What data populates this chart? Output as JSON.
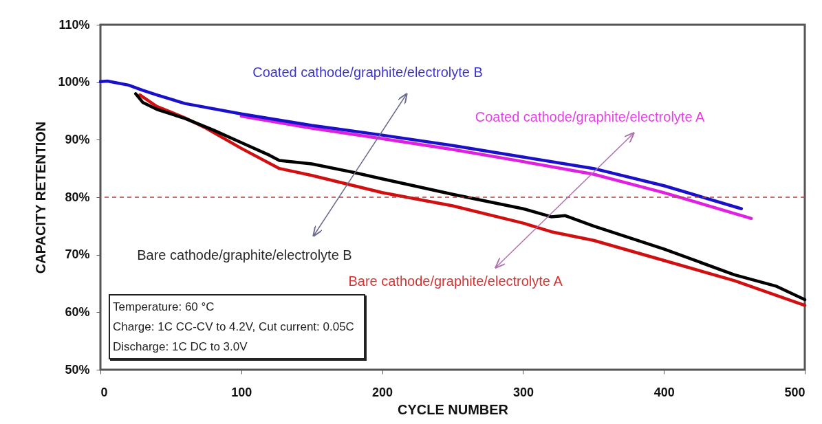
{
  "chart_data": {
    "type": "line",
    "xlabel": "CYCLE NUMBER",
    "ylabel": "CAPACITY  RETENTION",
    "xlim": [
      0,
      500
    ],
    "xticks": [
      0,
      100,
      200,
      300,
      400,
      500
    ],
    "ylim": [
      50,
      110
    ],
    "yticks": [
      {
        "value": 50,
        "label": "50%"
      },
      {
        "value": 60,
        "label": "60%"
      },
      {
        "value": 70,
        "label": "70%"
      },
      {
        "value": 80,
        "label": "80%"
      },
      {
        "value": 90,
        "label": "90%"
      },
      {
        "value": 100,
        "label": "100%"
      },
      {
        "value": 110,
        "label": "110%"
      }
    ],
    "grid": false,
    "legend": false,
    "line_style": "solid",
    "marker": "none",
    "series": [
      {
        "name": "Coated cathode/graphite/electrolyte B",
        "color": "#1a10c8",
        "x": [
          0,
          5,
          20,
          30,
          40,
          60,
          100,
          150,
          200,
          250,
          300,
          350,
          400,
          455
        ],
        "values": [
          100.1,
          100.2,
          99.5,
          98.6,
          97.8,
          96.3,
          94.5,
          92.5,
          90.8,
          89,
          87,
          85,
          82,
          78
        ]
      },
      {
        "name": "Coated cathode/graphite/electrolyte A",
        "color": "#e020e0",
        "x": [
          100,
          150,
          200,
          250,
          300,
          350,
          400,
          462
        ],
        "values": [
          94.1,
          92,
          90.2,
          88.3,
          86.2,
          84,
          80.8,
          76.3
        ]
      },
      {
        "name": "Bare cathode/graphite/electrolyte B",
        "color": "#000000",
        "x": [
          25,
          30,
          40,
          60,
          80,
          100,
          120,
          127,
          150,
          180,
          200,
          250,
          300,
          320,
          330,
          350,
          400,
          450,
          480,
          500
        ],
        "values": [
          98,
          96.5,
          95.3,
          93.7,
          91.7,
          89.5,
          87.3,
          86.4,
          85.8,
          84.3,
          83.2,
          80.5,
          78,
          76.6,
          76.8,
          75,
          71,
          66.5,
          64.5,
          62.2
        ]
      },
      {
        "name": "Bare cathode/graphite/electrolyte A",
        "color": "#d01010",
        "x": [
          28,
          40,
          60,
          75,
          100,
          127,
          150,
          175,
          200,
          250,
          300,
          320,
          350,
          400,
          450,
          500
        ],
        "values": [
          97.8,
          95.8,
          93.8,
          92,
          88.5,
          85,
          83.8,
          82.3,
          80.8,
          78.5,
          75.5,
          74,
          72.5,
          69,
          65.5,
          61.2
        ]
      }
    ],
    "ref_lines": [
      {
        "axis": "y",
        "value": 80,
        "color": "#b04040",
        "line_style": "dashed"
      }
    ],
    "annotations": [
      "Temperature: 60 °C",
      "Charge: 1C CC-CV to 4.2V, Cut current: 0.05C",
      "Discharge: 1C DC to 3.0V"
    ]
  }
}
